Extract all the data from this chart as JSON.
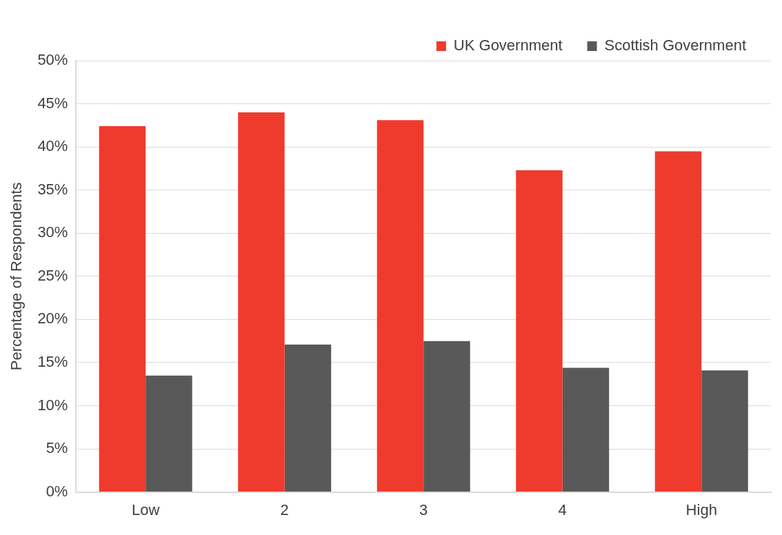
{
  "chart_data": {
    "type": "bar",
    "ylabel": "Percentage of Respondents",
    "categories": [
      "Low",
      "2",
      "3",
      "4",
      "High"
    ],
    "series": [
      {
        "name": "UK Government",
        "color": "#ee3b2e",
        "values": [
          42.4,
          44.0,
          43.1,
          37.3,
          39.5
        ]
      },
      {
        "name": "Scottish Government",
        "color": "#595959",
        "values": [
          13.5,
          17.1,
          17.5,
          14.4,
          14.1
        ]
      }
    ],
    "ylim": [
      0,
      50
    ],
    "yticks": [
      {
        "value": 0,
        "label": "0%"
      },
      {
        "value": 5,
        "label": "5%"
      },
      {
        "value": 10,
        "label": "10%"
      },
      {
        "value": 15,
        "label": "15%"
      },
      {
        "value": 20,
        "label": "20%"
      },
      {
        "value": 25,
        "label": "25%"
      },
      {
        "value": 30,
        "label": "30%"
      },
      {
        "value": 35,
        "label": "35%"
      },
      {
        "value": 40,
        "label": "40%"
      },
      {
        "value": 45,
        "label": "45%"
      },
      {
        "value": 50,
        "label": "50%"
      }
    ],
    "grid": "y",
    "legend": "top right"
  }
}
